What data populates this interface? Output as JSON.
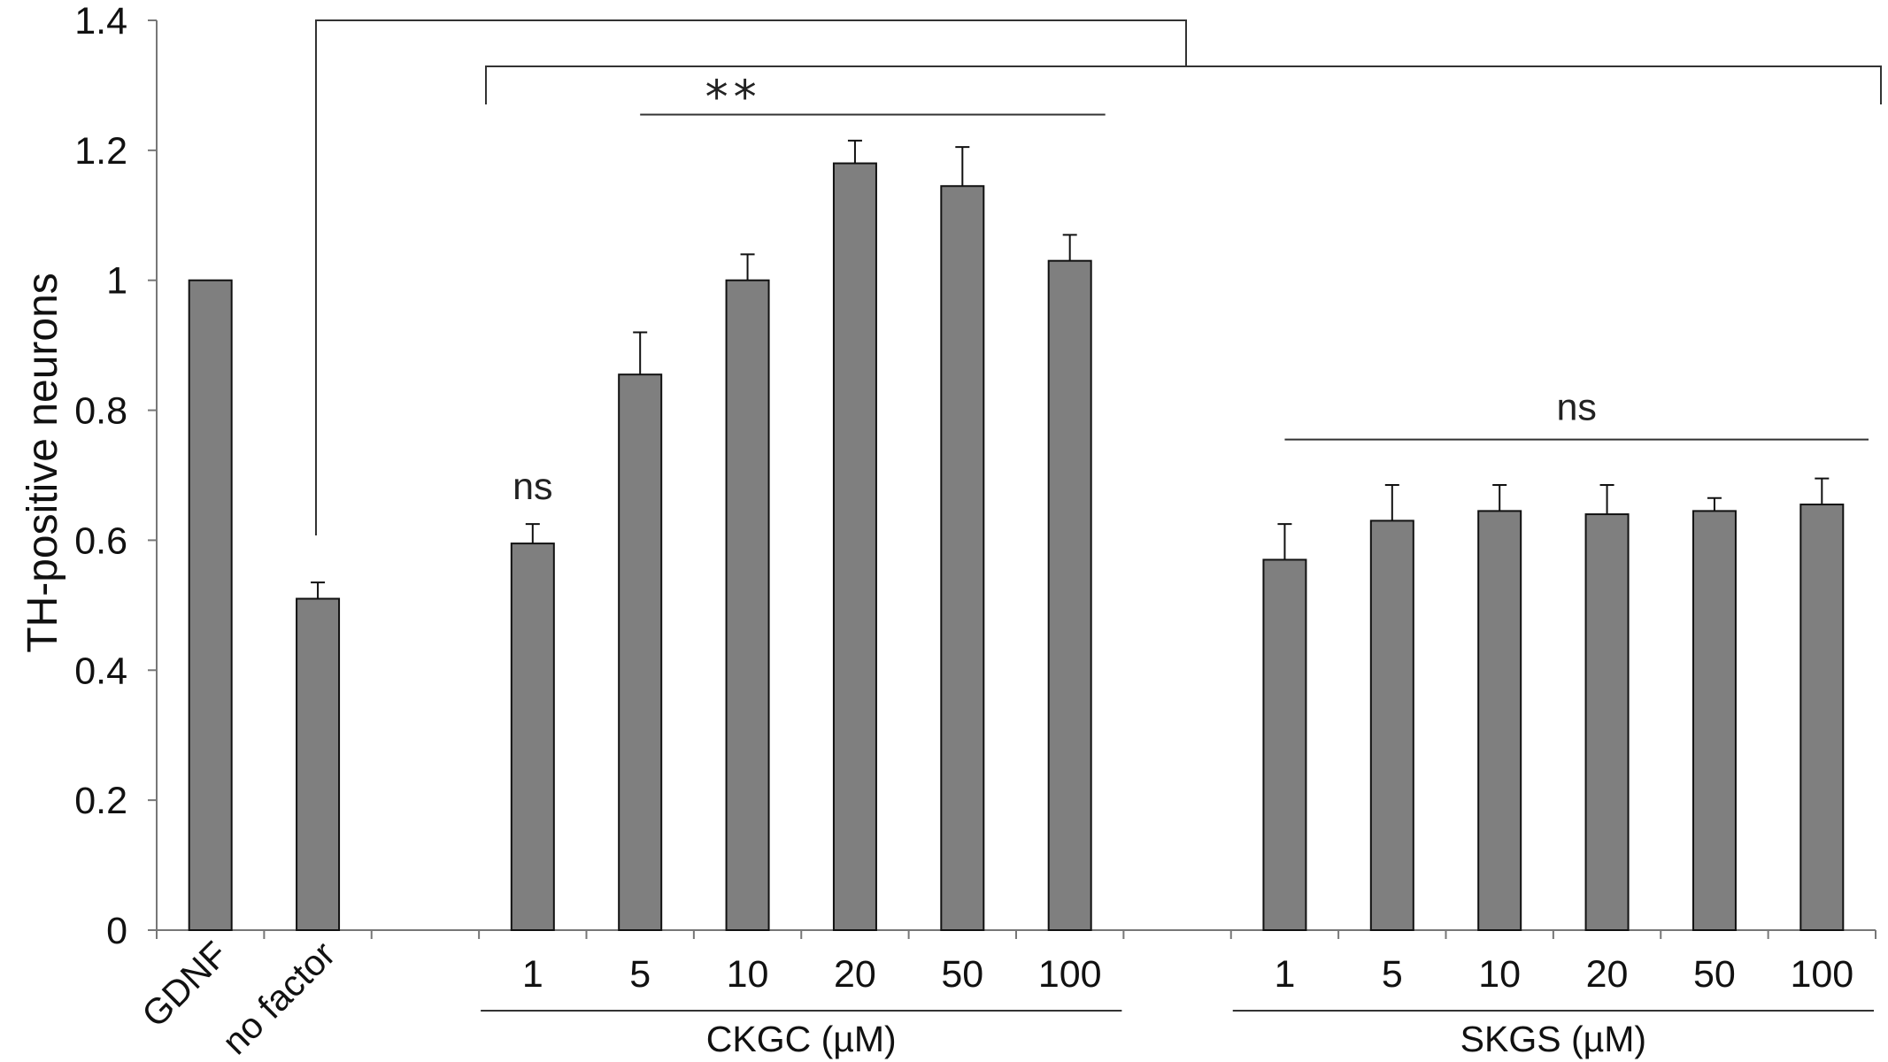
{
  "chart_data": {
    "type": "bar",
    "ylabel": "TH-positive neurons",
    "ylim": [
      0,
      1.4
    ],
    "yticks": [
      "0",
      "0.2",
      "0.4",
      "0.6",
      "0.8",
      "1",
      "1.2",
      "1.4"
    ],
    "bar_color": "#7f7f7f",
    "grid": false,
    "categories": [
      {
        "label": "GDNF",
        "value": 1.0,
        "error": 0,
        "slot": 0,
        "rotated": true
      },
      {
        "label": "no factor",
        "value": 0.51,
        "error": 0.025,
        "slot": 1,
        "rotated": true
      },
      {
        "label": "1",
        "value": 0.595,
        "error": 0.03,
        "slot": 3,
        "group": "CKGC (µM)"
      },
      {
        "label": "5",
        "value": 0.855,
        "error": 0.065,
        "slot": 4,
        "group": "CKGC (µM)"
      },
      {
        "label": "10",
        "value": 1.0,
        "error": 0.04,
        "slot": 5,
        "group": "CKGC (µM)"
      },
      {
        "label": "20",
        "value": 1.18,
        "error": 0.035,
        "slot": 6,
        "group": "CKGC (µM)"
      },
      {
        "label": "50",
        "value": 1.145,
        "error": 0.06,
        "slot": 7,
        "group": "CKGC (µM)"
      },
      {
        "label": "100",
        "value": 1.03,
        "error": 0.04,
        "slot": 8,
        "group": "CKGC (µM)"
      },
      {
        "label": "1",
        "value": 0.57,
        "error": 0.055,
        "slot": 10,
        "group": "SKGS (µM)"
      },
      {
        "label": "5",
        "value": 0.63,
        "error": 0.055,
        "slot": 11,
        "group": "SKGS (µM)"
      },
      {
        "label": "10",
        "value": 0.645,
        "error": 0.04,
        "slot": 12,
        "group": "SKGS (µM)"
      },
      {
        "label": "20",
        "value": 0.64,
        "error": 0.045,
        "slot": 13,
        "group": "SKGS (µM)"
      },
      {
        "label": "50",
        "value": 0.645,
        "error": 0.02,
        "slot": 14,
        "group": "SKGS (µM)"
      },
      {
        "label": "100",
        "value": 0.655,
        "error": 0.04,
        "slot": 15,
        "group": "SKGS (µM)"
      }
    ],
    "groups": [
      {
        "label": "CKGC (µM)",
        "slots": [
          3,
          8
        ]
      },
      {
        "label": "SKGS (µM)",
        "slots": [
          10,
          15
        ]
      }
    ],
    "annotations": [
      {
        "text": "ns",
        "kind": "above-bar",
        "slot": 3
      },
      {
        "text": "**",
        "kind": "bracket",
        "slots": [
          4,
          8
        ],
        "y": 1.255
      },
      {
        "text": "ns",
        "kind": "bracket",
        "slots": [
          10,
          15
        ],
        "y": 0.755
      }
    ]
  }
}
